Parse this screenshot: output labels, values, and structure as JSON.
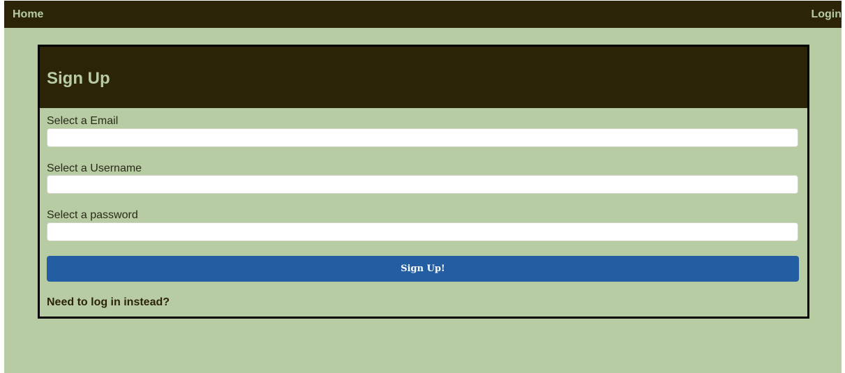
{
  "navbar": {
    "home_label": "Home",
    "login_label": "Login"
  },
  "signup": {
    "title": "Sign Up",
    "fields": {
      "email": {
        "label": "Select a Email",
        "value": "",
        "placeholder": ""
      },
      "username": {
        "label": "Select a Username",
        "value": "",
        "placeholder": ""
      },
      "password": {
        "label": "Select a password",
        "value": "",
        "placeholder": ""
      }
    },
    "submit_label": "Sign Up!",
    "login_instead_label": "Need to log in instead?"
  },
  "colors": {
    "background": "#b8cca4",
    "dark_header": "#2c2407",
    "button": "#225ea1",
    "card_border": "#000000"
  }
}
